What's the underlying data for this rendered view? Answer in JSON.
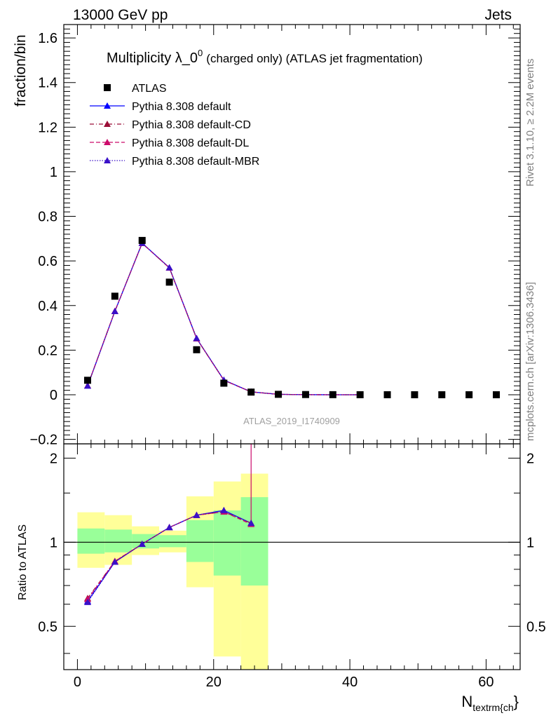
{
  "header": {
    "left": "13000 GeV pp",
    "right": "Jets"
  },
  "title": {
    "main": "Multiplicity λ_0",
    "superscript": "0",
    "suffix": "(charged only) (ATLAS jet fragmentation)"
  },
  "side_labels": {
    "rivet": "Rivet 3.1.10, ≥ 2.2M events",
    "mcplots": "mcplots.cern.ch [arXiv:1306.3436]"
  },
  "watermark": "ATLAS_2019_I1740909",
  "colors": {
    "data": "#000000",
    "default": "#0000ff",
    "cd": "#9b0f37",
    "dl": "#cc0a6a",
    "mbr": "#3a10c8",
    "band_inner": "#99ff99",
    "band_outer": "#ffff99"
  },
  "chart_data": [
    {
      "type": "scatter",
      "panel": "main",
      "ylabel": "fraction/bin",
      "xlim": [
        -2,
        65
      ],
      "ylim": [
        -0.22,
        1.66
      ],
      "yticks": [
        -0.2,
        0,
        0.2,
        0.4,
        0.6,
        0.8,
        1,
        1.2,
        1.4,
        1.6
      ],
      "ytick_labels": [
        "−0.2",
        "0",
        "0.2",
        "0.4",
        "0.6",
        "0.8",
        "1",
        "1.2",
        "1.4",
        "1.6"
      ],
      "legend_position": "top-left",
      "series": [
        {
          "name": "ATLAS",
          "key": "data",
          "style": "square",
          "x": [
            1.5,
            5.5,
            9.5,
            13.5,
            17.5,
            21.5,
            25.5,
            29.5,
            33.5,
            37.5,
            41.5,
            45.5,
            49.5,
            53.5,
            57.5,
            61.5
          ],
          "y": [
            0.065,
            0.442,
            0.692,
            0.505,
            0.202,
            0.052,
            0.012,
            0.002,
            0.001,
            0.0005,
            0.0003,
            0.0002,
            0.0001,
            0.0001,
            0.0001,
            0.0001
          ]
        },
        {
          "name": "Pythia 8.308 default",
          "key": "default",
          "style": "solid",
          "x": [
            1.5,
            5.5,
            9.5,
            13.5,
            17.5,
            21.5,
            25.5,
            29.5,
            33.5,
            37.5,
            41.5
          ],
          "y": [
            0.04,
            0.374,
            0.68,
            0.57,
            0.253,
            0.066,
            0.013,
            0.002,
            0.0004,
            0.0001,
            0.0001
          ]
        },
        {
          "name": "Pythia 8.308 default-CD",
          "key": "cd",
          "style": "dashdot",
          "x": [
            1.5,
            5.5,
            9.5,
            13.5,
            17.5,
            21.5,
            25.5,
            29.5,
            33.5,
            37.5,
            41.5
          ],
          "y": [
            0.041,
            0.375,
            0.679,
            0.569,
            0.252,
            0.065,
            0.013,
            0.002,
            0.0004,
            0.0001,
            0.0001
          ]
        },
        {
          "name": "Pythia 8.308 default-DL",
          "key": "dl",
          "style": "dashed",
          "x": [
            1.5,
            5.5,
            9.5,
            13.5,
            17.5,
            21.5,
            25.5,
            29.5,
            33.5,
            37.5,
            41.5
          ],
          "y": [
            0.041,
            0.375,
            0.679,
            0.569,
            0.252,
            0.065,
            0.013,
            0.002,
            0.0004,
            0.0001,
            0.0001
          ]
        },
        {
          "name": "Pythia 8.308 default-MBR",
          "key": "mbr",
          "style": "dotted",
          "x": [
            1.5,
            5.5,
            9.5,
            13.5,
            17.5,
            21.5,
            25.5,
            29.5,
            33.5,
            37.5,
            41.5
          ],
          "y": [
            0.04,
            0.374,
            0.68,
            0.57,
            0.253,
            0.066,
            0.013,
            0.002,
            0.0004,
            0.0001,
            0.0001
          ]
        }
      ]
    },
    {
      "type": "line",
      "panel": "ratio",
      "ylabel": "Ratio to ATLAS",
      "xlabel": "N",
      "xlabel_sub": "textrm{ch",
      "xlabel_tail": "}",
      "xlim": [
        -2,
        65
      ],
      "ylim": [
        0.35,
        2.25
      ],
      "xticks": [
        0,
        20,
        40,
        60
      ],
      "xtick_labels": [
        "0",
        "20",
        "40",
        "60"
      ],
      "yticks": [
        0.5,
        1,
        2
      ],
      "ytick_labels": [
        "0.5",
        "1",
        "2"
      ],
      "bands": {
        "edges": [
          0,
          4,
          8,
          12,
          16,
          20,
          24,
          28
        ],
        "inner_low": [
          0.91,
          0.92,
          0.95,
          0.96,
          0.85,
          0.76,
          0.7
        ],
        "inner_high": [
          1.12,
          1.11,
          1.07,
          1.06,
          1.2,
          1.3,
          1.45
        ],
        "outer_low": [
          0.81,
          0.83,
          0.9,
          0.92,
          0.69,
          0.39,
          0.33
        ],
        "outer_high": [
          1.28,
          1.25,
          1.14,
          1.1,
          1.46,
          1.65,
          1.76
        ]
      },
      "series": [
        {
          "name": "Pythia 8.308 default",
          "key": "default",
          "style": "solid",
          "x": [
            1.5,
            5.5,
            9.5,
            13.5,
            17.5,
            21.5,
            25.5
          ],
          "y": [
            0.615,
            0.85,
            0.985,
            1.13,
            1.25,
            1.3,
            1.17
          ]
        },
        {
          "name": "Pythia 8.308 default-CD",
          "key": "cd",
          "style": "dashdot",
          "x": [
            1.5,
            5.5,
            9.5,
            13.5,
            17.5,
            21.5,
            25.5
          ],
          "y": [
            0.63,
            0.855,
            0.985,
            1.13,
            1.25,
            1.285,
            1.17
          ]
        },
        {
          "name": "Pythia 8.308 default-DL",
          "key": "dl",
          "style": "dashed",
          "x": [
            1.5,
            5.5,
            9.5,
            13.5,
            17.5,
            21.5,
            25.5
          ],
          "y": [
            0.625,
            0.855,
            0.985,
            1.13,
            1.25,
            1.285,
            1.16
          ]
        },
        {
          "name": "Pythia 8.308 default-MBR",
          "key": "mbr",
          "style": "dotted",
          "x": [
            1.5,
            5.5,
            9.5,
            13.5,
            17.5,
            21.5,
            25.5
          ],
          "y": [
            0.61,
            0.85,
            0.985,
            1.13,
            1.25,
            1.3,
            1.17
          ]
        }
      ]
    }
  ]
}
